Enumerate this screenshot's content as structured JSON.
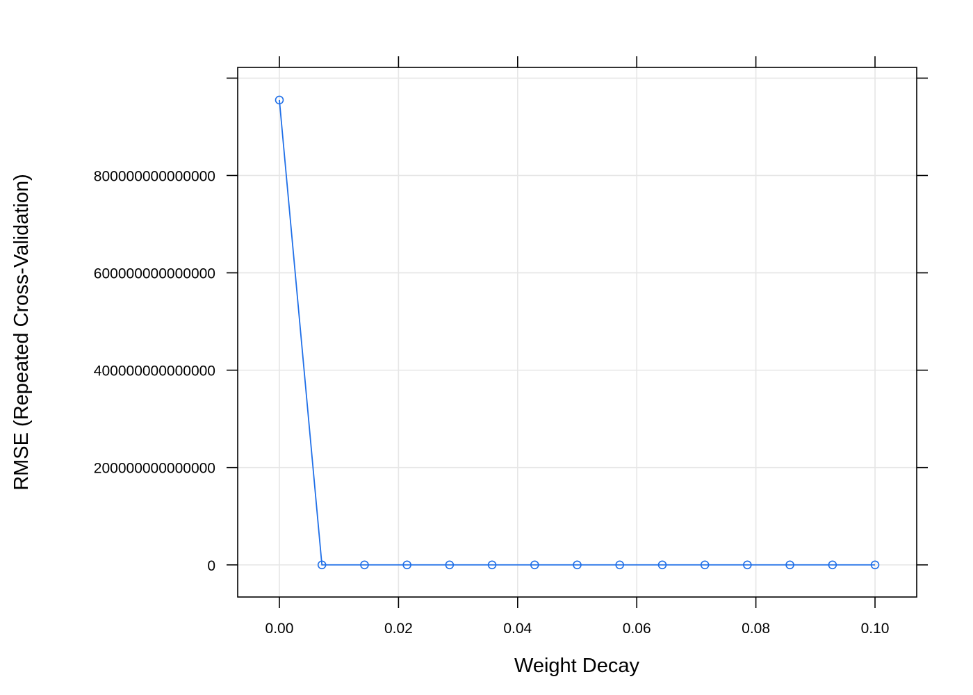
{
  "chart_data": {
    "type": "line",
    "xlabel": "Weight Decay",
    "ylabel": "RMSE (Repeated Cross-Validation)",
    "xlim": [
      -0.007,
      0.107
    ],
    "ylim": [
      -66000000000000,
      1022000000000000
    ],
    "x_ticks": [
      {
        "value": 0.0,
        "label": "0.00"
      },
      {
        "value": 0.02,
        "label": "0.02"
      },
      {
        "value": 0.04,
        "label": "0.04"
      },
      {
        "value": 0.06,
        "label": "0.06"
      },
      {
        "value": 0.08,
        "label": "0.08"
      },
      {
        "value": 0.1,
        "label": "0.10"
      }
    ],
    "y_ticks": [
      {
        "value": 0,
        "label": "0"
      },
      {
        "value": 200000000000000,
        "label": "200000000000000"
      },
      {
        "value": 400000000000000,
        "label": "400000000000000"
      },
      {
        "value": 600000000000000,
        "label": "600000000000000"
      },
      {
        "value": 800000000000000,
        "label": "800000000000000"
      },
      {
        "value": 1000000000000000,
        "label": ""
      }
    ],
    "grid": true,
    "series": [
      {
        "color": "#1f6fe8",
        "marker": "open-circle",
        "x": [
          0.0,
          0.00714,
          0.01429,
          0.02143,
          0.02857,
          0.03571,
          0.04286,
          0.05,
          0.05714,
          0.06429,
          0.07143,
          0.07857,
          0.08571,
          0.09286,
          0.1
        ],
        "y": [
          955000000000000,
          0,
          0,
          0,
          0,
          0,
          0,
          0,
          0,
          0,
          0,
          0,
          0,
          0,
          0
        ]
      }
    ]
  }
}
